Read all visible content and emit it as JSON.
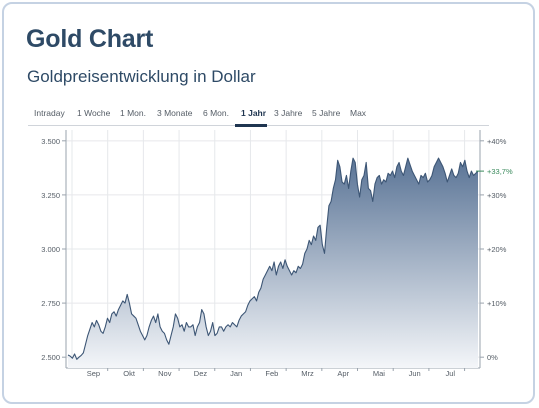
{
  "header": {
    "title": "Gold Chart",
    "subtitle": "Goldpreisentwicklung in Dollar"
  },
  "tabs": [
    {
      "label": "Intraday",
      "active": false
    },
    {
      "label": "1 Woche",
      "active": false
    },
    {
      "label": "1 Mon.",
      "active": false
    },
    {
      "label": "3 Monate",
      "active": false
    },
    {
      "label": "6 Mon.",
      "active": false
    },
    {
      "label": "1 Jahr",
      "active": true
    },
    {
      "label": "3 Jahre",
      "active": false
    },
    {
      "label": "5 Jahre",
      "active": false
    },
    {
      "label": "Max",
      "active": false
    }
  ],
  "colors": {
    "accent": "#1f3550",
    "line": "#3d5675",
    "area_top": "#5a7496",
    "area_bottom": "#f4f6f9",
    "grid": "#e6e8eb",
    "pct_label": "#3a8a5c"
  },
  "chart_data": {
    "type": "area",
    "xlabel": "",
    "ylabel": "",
    "ylim": [
      2450,
      3550
    ],
    "y_ticks": [
      {
        "value": 3500,
        "label": "3.500"
      },
      {
        "value": 3250,
        "label": "3.250"
      },
      {
        "value": 3000,
        "label": "3.000"
      },
      {
        "value": 2750,
        "label": "2.750"
      },
      {
        "value": 2500,
        "label": "2.500"
      }
    ],
    "y2_ticks": [
      {
        "pct": 40,
        "label": "+40%"
      },
      {
        "pct": 30,
        "label": "+30%"
      },
      {
        "pct": 20,
        "label": "+20%"
      },
      {
        "pct": 10,
        "label": "+10%"
      },
      {
        "pct": 0,
        "label": "0%"
      }
    ],
    "baseline": 2500,
    "x_ticks": [
      "Sep",
      "Okt",
      "Nov",
      "Dez",
      "Jan",
      "Feb",
      "Mrz",
      "Apr",
      "Mai",
      "Jun",
      "Jul"
    ],
    "last_change": "+33,7%",
    "last_value": 3360,
    "grid": true,
    "series": [
      {
        "values": [
          2510,
          2505,
          2495,
          2515,
          2490,
          2500,
          2508,
          2520,
          2560,
          2600,
          2630,
          2660,
          2640,
          2670,
          2650,
          2620,
          2610,
          2640,
          2680,
          2660,
          2700,
          2710,
          2690,
          2720,
          2740,
          2760,
          2750,
          2790,
          2750,
          2700,
          2690,
          2680,
          2650,
          2620,
          2600,
          2580,
          2600,
          2640,
          2670,
          2690,
          2660,
          2700,
          2640,
          2620,
          2610,
          2580,
          2560,
          2600,
          2640,
          2700,
          2680,
          2640,
          2650,
          2620,
          2660,
          2640,
          2640,
          2650,
          2600,
          2640,
          2660,
          2720,
          2700,
          2640,
          2600,
          2620,
          2660,
          2600,
          2610,
          2640,
          2640,
          2620,
          2640,
          2650,
          2640,
          2660,
          2650,
          2640,
          2670,
          2690,
          2700,
          2710,
          2740,
          2760,
          2770,
          2780,
          2760,
          2800,
          2820,
          2860,
          2880,
          2900,
          2920,
          2900,
          2940,
          2880,
          2920,
          2940,
          2910,
          2950,
          2920,
          2900,
          2880,
          2900,
          2890,
          2920,
          2910,
          2930,
          2980,
          3000,
          3040,
          3020,
          3060,
          3040,
          3100,
          3110,
          3020,
          2980,
          3100,
          3200,
          3220,
          3280,
          3320,
          3410,
          3380,
          3310,
          3300,
          3340,
          3280,
          3360,
          3420,
          3400,
          3300,
          3240,
          3320,
          3340,
          3400,
          3280,
          3270,
          3220,
          3300,
          3330,
          3340,
          3300,
          3320,
          3310,
          3350,
          3340,
          3360,
          3330,
          3380,
          3400,
          3360,
          3340,
          3380,
          3420,
          3390,
          3360,
          3340,
          3320,
          3300,
          3340,
          3330,
          3350,
          3310,
          3320,
          3340,
          3380,
          3400,
          3420,
          3400,
          3380,
          3350,
          3310,
          3340,
          3370,
          3340,
          3330,
          3350,
          3400,
          3380,
          3410,
          3360,
          3330,
          3360,
          3340,
          3350,
          3360
        ]
      }
    ]
  }
}
